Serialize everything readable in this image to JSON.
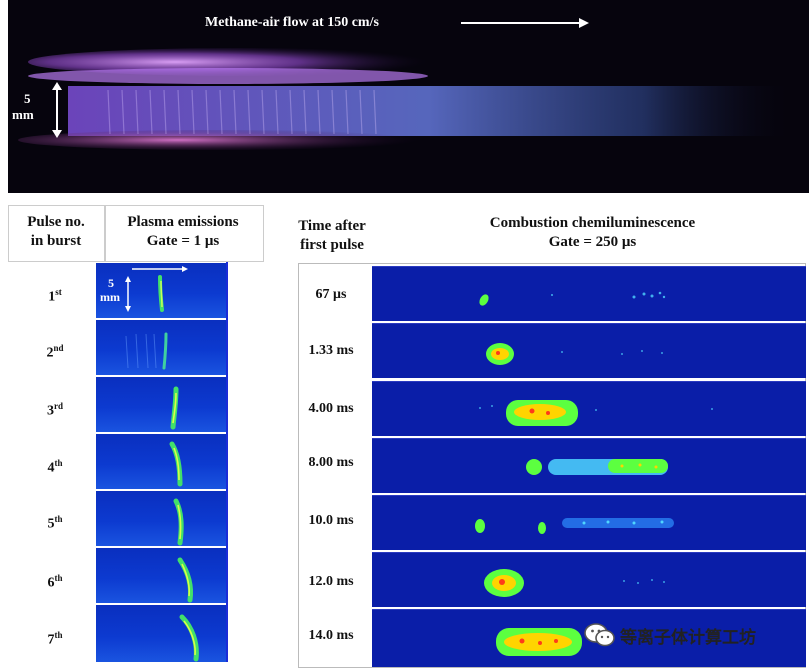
{
  "top_photo": {
    "flow_label": "Methane-air flow at 150 cm/s",
    "scale_value": "5",
    "scale_unit": "mm"
  },
  "headers": {
    "pulse_line1": "Pulse no.",
    "pulse_line2": "in burst",
    "plasma_line1": "Plasma emissions",
    "plasma_line2": "Gate = 1 μs",
    "time_line1": "Time after",
    "time_line2": "first pulse",
    "comb_line1": "Combustion chemiluminescence",
    "comb_line2": "Gate = 250 μs"
  },
  "plasma_scale": {
    "value": "5",
    "unit": "mm"
  },
  "pulses": [
    {
      "num": "1",
      "suffix": "st"
    },
    {
      "num": "2",
      "suffix": "nd"
    },
    {
      "num": "3",
      "suffix": "rd"
    },
    {
      "num": "4",
      "suffix": "th"
    },
    {
      "num": "5",
      "suffix": "th"
    },
    {
      "num": "6",
      "suffix": "th"
    },
    {
      "num": "7",
      "suffix": "th"
    }
  ],
  "times": [
    "67 μs",
    "1.33  ms",
    "4.00  ms",
    "8.00  ms",
    "10.0  ms",
    "12.0  ms",
    "14.0  ms"
  ],
  "watermark": {
    "text": "等离子体计算工坊",
    "icon": "wechat-icon"
  },
  "colors": {
    "frame_blue": "#0a1ea8",
    "plasma_blue": "#0c3ad0",
    "hot_green": "#5cff40",
    "core_yellow": "#ffd400"
  }
}
